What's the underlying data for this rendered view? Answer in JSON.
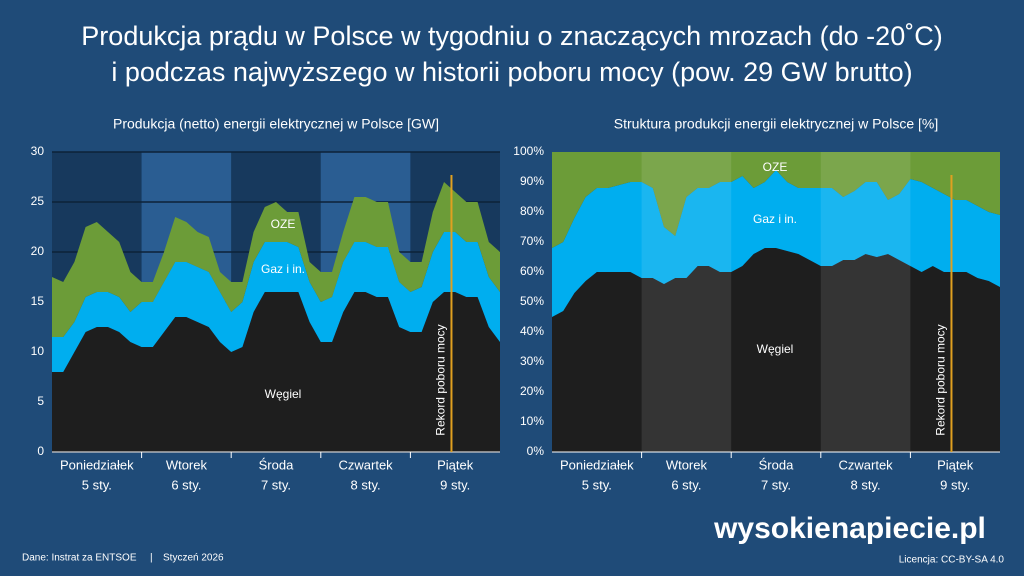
{
  "title": [
    "Produkcja prądu w Polsce w tygodniu o znaczących mrozach (do -20˚C)",
    "i podczas najwyższego w historii poboru mocy (pow. 29 GW brutto)"
  ],
  "chart_data": [
    {
      "type": "area",
      "title": "Produkcja (netto) energii elektrycznej w Polsce [GW]",
      "x": [
        0,
        3,
        6,
        9,
        12,
        15,
        18,
        21,
        24,
        27,
        30,
        33,
        36,
        39,
        42,
        45,
        48,
        51,
        54,
        57,
        60,
        63,
        66,
        69,
        72,
        75,
        78,
        81,
        84,
        87,
        90,
        93,
        96,
        99,
        102,
        105,
        108,
        111,
        114,
        117,
        120
      ],
      "xlim": [
        0,
        120
      ],
      "xticks": [
        {
          "value": 12,
          "label": "Poniedziałek",
          "date": "5 sty."
        },
        {
          "value": 36,
          "label": "Wtorek",
          "date": "6 sty."
        },
        {
          "value": 60,
          "label": "Środa",
          "date": "7 sty."
        },
        {
          "value": 84,
          "label": "Czwartek",
          "date": "8 sty."
        },
        {
          "value": 108,
          "label": "Piątek",
          "date": "9 sty."
        }
      ],
      "ylim": [
        0,
        30
      ],
      "yticks": [
        0,
        5,
        10,
        15,
        20,
        25,
        30
      ],
      "grid": true,
      "series": [
        {
          "name": "Węgiel",
          "color": "#1e1e1e",
          "values": [
            8,
            8,
            10,
            12,
            12.5,
            12.5,
            12,
            11,
            10.5,
            10.5,
            12,
            13.5,
            13.5,
            13,
            12.5,
            11,
            10,
            10.5,
            14,
            16,
            16,
            16,
            16,
            13,
            11,
            11,
            14,
            16,
            16,
            15.5,
            15.5,
            12.5,
            12,
            12,
            15,
            16,
            16,
            15.5,
            15.5,
            12.5,
            11
          ]
        },
        {
          "name": "Gaz i in.",
          "color": "#00aeef",
          "values": [
            3.5,
            3.5,
            3,
            3.5,
            3.5,
            3.5,
            3.5,
            3,
            4.5,
            4.5,
            5,
            5.5,
            5.5,
            5.5,
            5.5,
            5,
            4,
            4.5,
            5,
            5,
            5,
            5,
            4.5,
            4,
            4,
            4.5,
            5,
            5,
            5,
            5,
            5,
            4.5,
            4,
            4.5,
            5,
            6,
            6,
            5.5,
            5.5,
            5,
            5
          ]
        },
        {
          "name": "OZE",
          "color": "#6c9c38",
          "values": [
            6,
            5.5,
            6,
            7,
            7,
            6,
            5.5,
            4,
            2,
            2,
            3,
            4.5,
            4,
            3.5,
            3.5,
            2,
            3,
            2,
            3,
            3.5,
            4,
            3,
            3.5,
            2,
            3,
            2.5,
            3,
            4.5,
            4.5,
            4.5,
            4.5,
            3,
            3,
            2.5,
            4,
            5,
            4,
            4,
            4,
            3.5,
            4
          ]
        }
      ],
      "annotation": {
        "text": "Rekord poboru mocy",
        "x": 107,
        "color": "#e0a020"
      }
    },
    {
      "type": "area",
      "title": "Struktura produkcji energii elektrycznej w Polsce [%]",
      "x": [
        0,
        3,
        6,
        9,
        12,
        15,
        18,
        21,
        24,
        27,
        30,
        33,
        36,
        39,
        42,
        45,
        48,
        51,
        54,
        57,
        60,
        63,
        66,
        69,
        72,
        75,
        78,
        81,
        84,
        87,
        90,
        93,
        96,
        99,
        102,
        105,
        108,
        111,
        114,
        117,
        120
      ],
      "xlim": [
        0,
        120
      ],
      "xticks": [
        {
          "value": 12,
          "label": "Poniedziałek",
          "date": "5 sty."
        },
        {
          "value": 36,
          "label": "Wtorek",
          "date": "6 sty."
        },
        {
          "value": 60,
          "label": "Środa",
          "date": "7 sty."
        },
        {
          "value": 84,
          "label": "Czwartek",
          "date": "8 sty."
        },
        {
          "value": 108,
          "label": "Piątek",
          "date": "9 sty."
        }
      ],
      "ylim": [
        0,
        100
      ],
      "yticks": [
        {
          "value": 0,
          "label": "0%"
        },
        {
          "value": 10,
          "label": "10%"
        },
        {
          "value": 20,
          "label": "20%"
        },
        {
          "value": 30,
          "label": "30%"
        },
        {
          "value": 40,
          "label": "40%"
        },
        {
          "value": 50,
          "label": "50%"
        },
        {
          "value": 60,
          "label": "60%"
        },
        {
          "value": 70,
          "label": "70%"
        },
        {
          "value": 80,
          "label": "80%"
        },
        {
          "value": 90,
          "label": "90%"
        },
        {
          "value": 100,
          "label": "100%"
        }
      ],
      "grid": false,
      "series": [
        {
          "name": "Węgiel",
          "color": "#1e1e1e",
          "values": [
            45,
            47,
            53,
            57,
            60,
            60,
            60,
            60,
            58,
            58,
            56,
            58,
            58,
            62,
            62,
            60,
            60,
            62,
            66,
            68,
            68,
            67,
            66,
            64,
            62,
            62,
            64,
            64,
            66,
            65,
            66,
            64,
            62,
            60,
            62,
            60,
            60,
            60,
            58,
            57,
            55
          ]
        },
        {
          "name": "Gaz i in.",
          "color": "#00aeef",
          "values": [
            23,
            23,
            25,
            28,
            28,
            28,
            29,
            30,
            32,
            30,
            19,
            14,
            27,
            26,
            26,
            30,
            30,
            30,
            22,
            22,
            26,
            23,
            22,
            24,
            26,
            26,
            21,
            23,
            24,
            25,
            18,
            22,
            29,
            30,
            26,
            26,
            24,
            24,
            24,
            23,
            24
          ]
        },
        {
          "name": "OZE",
          "color": "#6c9c38",
          "values": [
            32,
            30,
            22,
            15,
            12,
            12,
            11,
            10,
            10,
            12,
            25,
            28,
            15,
            12,
            12,
            10,
            10,
            8,
            12,
            10,
            6,
            10,
            12,
            12,
            12,
            12,
            15,
            13,
            10,
            10,
            16,
            14,
            9,
            10,
            12,
            14,
            16,
            16,
            18,
            20,
            21
          ]
        }
      ],
      "annotation": {
        "text": "Rekord poboru mocy",
        "x": 107,
        "color": "#e0a020"
      }
    }
  ],
  "footer": {
    "source": "Dane: Instrat za ENTSOE",
    "date": "Styczeń 2026",
    "logo": "wysokienapiecie.pl",
    "license": "Licencja: CC-BY-SA 4.0"
  }
}
